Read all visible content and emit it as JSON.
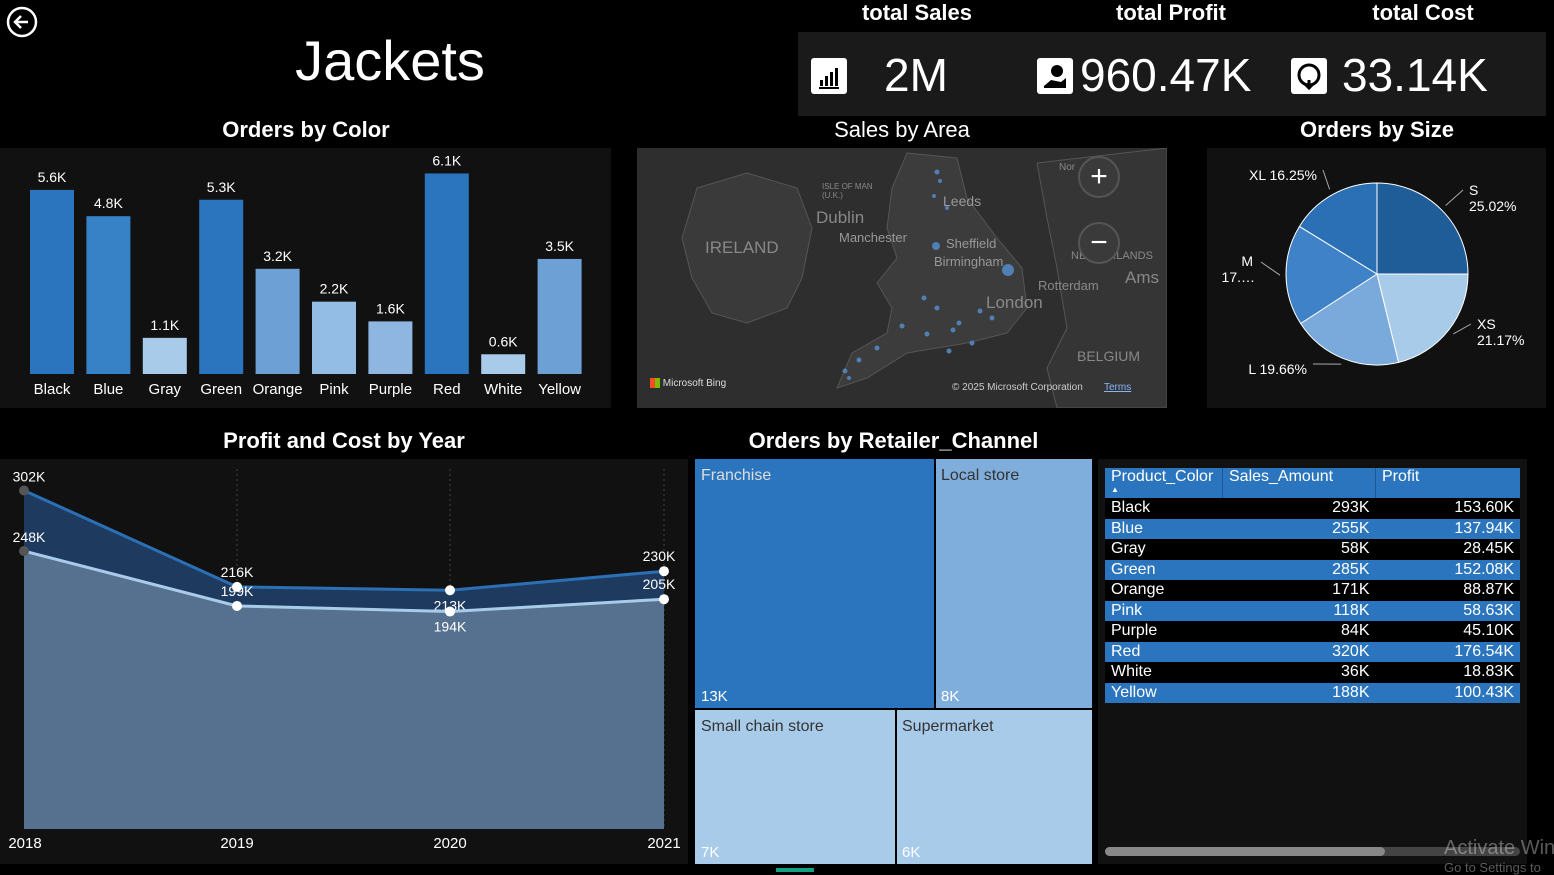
{
  "header": {
    "title": "Jackets",
    "back_icon": "back-arrow-icon"
  },
  "kpis": [
    {
      "label": "total Sales",
      "value": "2M",
      "icon": "bar-chart-icon"
    },
    {
      "label": "total Profit",
      "value": "960.47K",
      "icon": "hand-money-icon"
    },
    {
      "label": "total Cost",
      "value": "33.14K",
      "icon": "coin-down-icon"
    }
  ],
  "orders_by_color": {
    "title": "Orders by Color",
    "chart_data": {
      "type": "bar",
      "categories": [
        "Black",
        "Blue",
        "Gray",
        "Green",
        "Orange",
        "Pink",
        "Purple",
        "Red",
        "White",
        "Yellow"
      ],
      "values": [
        5.6,
        4.8,
        1.1,
        5.3,
        3.2,
        2.2,
        1.6,
        6.1,
        0.6,
        3.5
      ],
      "value_labels": [
        "5.6K",
        "4.8K",
        "1.1K",
        "5.3K",
        "3.2K",
        "2.2K",
        "1.6K",
        "6.1K",
        "0.6K",
        "3.5K"
      ],
      "colors": [
        "#2A75BD",
        "#3782C6",
        "#A9CBEA",
        "#2A75BD",
        "#6DA1D6",
        "#93BDE5",
        "#8FB6E0",
        "#2A75BD",
        "#A9CBEA",
        "#6DA1D6"
      ]
    }
  },
  "sales_by_area": {
    "title": "Sales by Area",
    "map_labels": [
      "IRELAND",
      "Dublin",
      "Manchester",
      "Leeds",
      "Sheffield",
      "Birmingham",
      "London",
      "Rotterdam",
      "Ams",
      "BELGIUM",
      "ISLE OF MAN (U.K.)",
      "NETHERLANDS",
      "Nor"
    ],
    "bing_label": "Microsoft Bing",
    "copyright": "© 2025 Microsoft Corporation",
    "terms": "Terms",
    "zoom_in": "+",
    "zoom_out": "−"
  },
  "orders_by_size": {
    "title": "Orders by Size",
    "chart_data": {
      "type": "pie",
      "slices": [
        {
          "label": "S",
          "percent": 25.02,
          "display": "25.02%",
          "color": "#1F5D99"
        },
        {
          "label": "XS",
          "percent": 21.17,
          "display": "21.17%",
          "color": "#A9CBEA"
        },
        {
          "label": "L",
          "percent": 19.66,
          "display": "19.66%",
          "color": "#7AA9DC"
        },
        {
          "label": "M",
          "percent": 17.9,
          "display": "17.…",
          "color": "#3F82C7"
        },
        {
          "label": "XL",
          "percent": 16.25,
          "display": "16.25%",
          "color": "#2B6FB5"
        }
      ]
    }
  },
  "profit_cost": {
    "title": "Profit and Cost by Year",
    "chart_data": {
      "type": "area",
      "x": [
        "2018",
        "2019",
        "2020",
        "2021"
      ],
      "ylim": [
        0,
        340
      ],
      "series": [
        {
          "values": [
            302,
            216,
            213,
            230
          ],
          "labels": [
            "302K",
            "216K",
            "213K",
            "230K"
          ],
          "color": "#2B6FB5",
          "fill": "#1E3A5F"
        },
        {
          "values": [
            248,
            199,
            194,
            205
          ],
          "labels": [
            "248K",
            "199K",
            "194K",
            "205K"
          ],
          "color": "#A9CBEA",
          "fill": "#56718F"
        }
      ]
    }
  },
  "retailer": {
    "title": "Orders by Retailer_Channel",
    "chart_data": {
      "type": "treemap",
      "items": [
        {
          "name": "Franchise",
          "label": "13K",
          "color": "#2A75BD"
        },
        {
          "name": "Local store",
          "label": "8K",
          "color": "#80AEDC"
        },
        {
          "name": "Small chain store",
          "label": "7K",
          "color": "#A9CBEA"
        },
        {
          "name": "Supermarket",
          "label": "6K",
          "color": "#A9CBEA"
        }
      ]
    }
  },
  "table": {
    "columns": [
      "Product_Color",
      "Sales_Amount",
      "Profit"
    ],
    "rows": [
      [
        "Black",
        "293K",
        "153.60K"
      ],
      [
        "Blue",
        "255K",
        "137.94K"
      ],
      [
        "Gray",
        "58K",
        "28.45K"
      ],
      [
        "Green",
        "285K",
        "152.08K"
      ],
      [
        "Orange",
        "171K",
        "88.87K"
      ],
      [
        "Pink",
        "118K",
        "58.63K"
      ],
      [
        "Purple",
        "84K",
        "45.10K"
      ],
      [
        "Red",
        "320K",
        "176.54K"
      ],
      [
        "White",
        "36K",
        "18.83K"
      ],
      [
        "Yellow",
        "188K",
        "100.43K"
      ]
    ],
    "alt_color": "#2A75BD"
  },
  "watermark": {
    "line1": "Activate Win",
    "line2": "Go to Settings to"
  }
}
